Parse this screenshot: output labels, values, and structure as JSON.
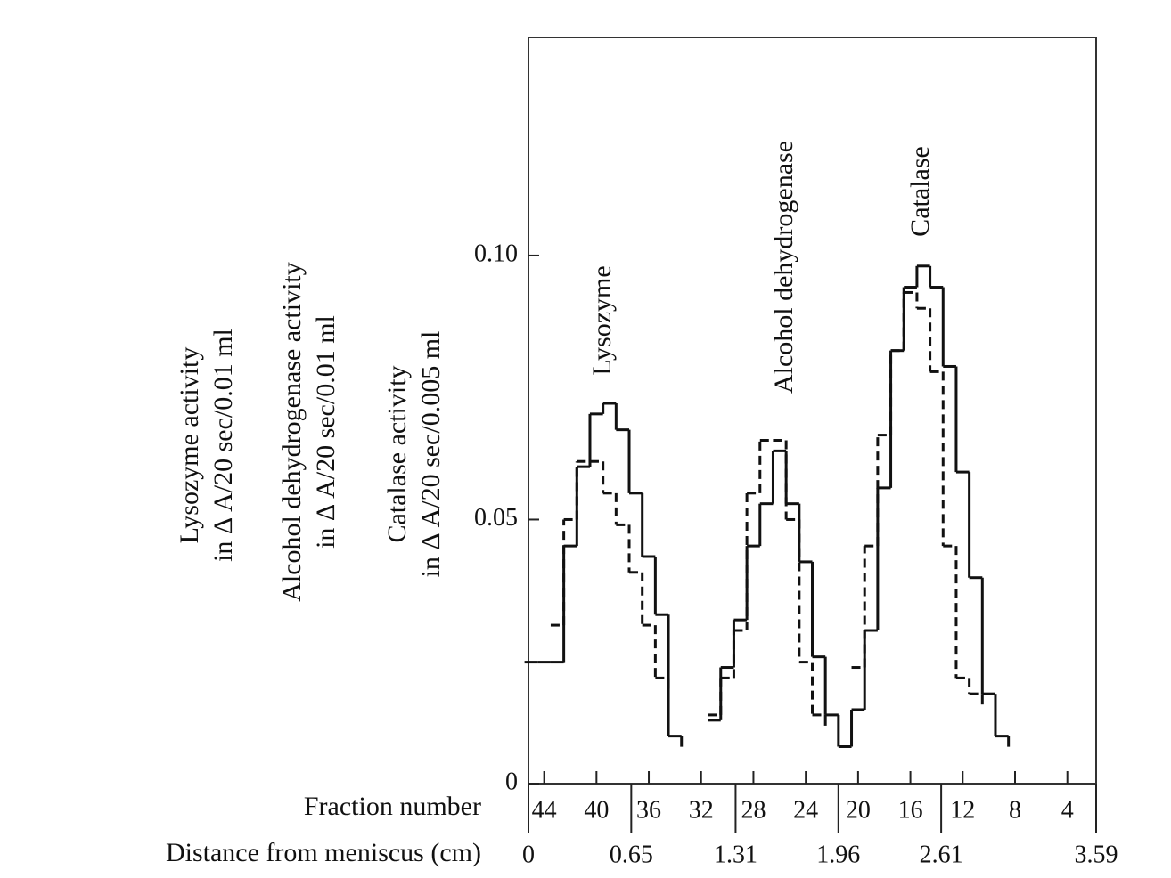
{
  "chart_data": {
    "type": "step",
    "x": [
      45,
      44,
      43,
      42,
      41,
      40,
      39,
      38,
      37,
      36,
      35,
      34,
      33,
      32,
      31,
      30,
      29,
      28,
      27,
      26,
      25,
      24,
      23,
      22,
      21,
      20,
      19,
      18,
      17,
      16,
      15,
      14,
      13,
      12,
      11,
      10,
      9
    ],
    "series": [
      {
        "color": "#111111",
        "dashed": false,
        "values": [
          0.023,
          0.023,
          0.023,
          0.045,
          0.06,
          0.07,
          0.072,
          0.067,
          0.055,
          0.043,
          0.032,
          0.009,
          null,
          null,
          0.012,
          0.022,
          0.031,
          0.045,
          0.053,
          0.063,
          0.053,
          0.042,
          0.024,
          0.013,
          0.007,
          0.014,
          0.029,
          0.056,
          0.082,
          0.094,
          0.098,
          0.094,
          0.079,
          0.059,
          0.039,
          0.017,
          0.009
        ]
      },
      {
        "color": "#111111",
        "dashed": true,
        "values": [
          null,
          null,
          0.03,
          0.05,
          0.061,
          0.061,
          0.055,
          0.049,
          0.04,
          0.03,
          0.02,
          null,
          null,
          null,
          0.013,
          0.02,
          0.029,
          0.055,
          0.065,
          0.065,
          0.05,
          0.023,
          0.013,
          null,
          null,
          0.022,
          0.045,
          0.066,
          0.082,
          0.093,
          0.09,
          0.078,
          0.045,
          0.02,
          0.017,
          null,
          null
        ]
      }
    ],
    "xlabel": "Fraction number",
    "xlim": [
      45.2,
      1.8
    ],
    "xticks": [
      44,
      40,
      36,
      32,
      28,
      24,
      20,
      16,
      12,
      8,
      4
    ],
    "distance_axis": {
      "label": "Distance from meniscus (cm)",
      "lim": [
        0,
        3.59
      ],
      "ticks": [
        0,
        0.65,
        1.31,
        1.96,
        2.61,
        3.59
      ]
    },
    "ylim": [
      0,
      0.1413
    ],
    "yticks": [
      0,
      0.05,
      {
        "value": 0.1,
        "label": "0.10"
      }
    ],
    "ylabels": [
      [
        "Lysozyme activity",
        "in Δ A/20 sec/0.01 ml"
      ],
      [
        "Alcohol dehydrogenase activity",
        "in Δ A/20 sec/0.01 ml"
      ],
      [
        "Catalase activity",
        "in Δ A/20 sec/0.005 ml"
      ]
    ],
    "annotations": [
      "Lysozyme",
      "Alcohol dehydrogenase",
      "Catalase"
    ]
  }
}
